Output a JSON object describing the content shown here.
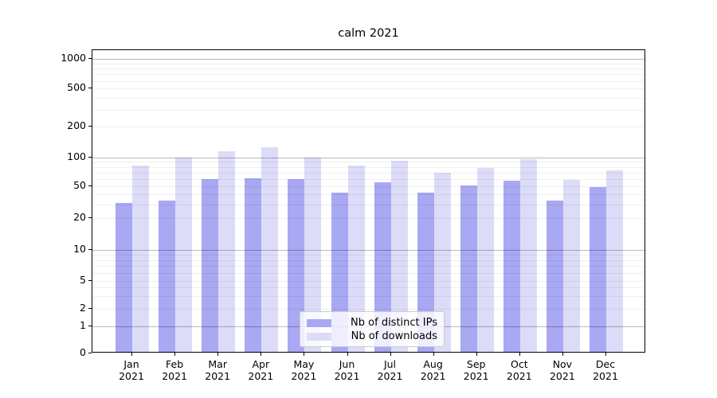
{
  "chart_data": {
    "type": "bar",
    "title": "calm 2021",
    "categories": [
      "Jan 2021",
      "Feb 2021",
      "Mar 2021",
      "Apr 2021",
      "May 2021",
      "Jun 2021",
      "Jul 2021",
      "Aug 2021",
      "Sep 2021",
      "Oct 2021",
      "Nov 2021",
      "Dec 2021"
    ],
    "months": [
      "Jan",
      "Feb",
      "Mar",
      "Apr",
      "May",
      "Jun",
      "Jul",
      "Aug",
      "Sep",
      "Oct",
      "Nov",
      "Dec"
    ],
    "year": "2021",
    "series": [
      {
        "name": "Nb of distinct IPs",
        "color": "#a8a8f3",
        "values": [
          31,
          33,
          60,
          61,
          60,
          42,
          55,
          42,
          51,
          57,
          33,
          49
        ]
      },
      {
        "name": "Nb of downloads",
        "color": "#dcdcf8",
        "values": [
          83,
          99,
          114,
          125,
          100,
          83,
          93,
          70,
          78,
          96,
          59,
          73
        ]
      }
    ],
    "yscale": "symlog",
    "yticks": [
      0,
      1,
      2,
      5,
      10,
      20,
      50,
      100,
      200,
      500,
      1000
    ],
    "ylim": [
      0,
      1400
    ],
    "xlabel": "",
    "ylabel": "",
    "grid": true,
    "legend_position": "lower center"
  }
}
